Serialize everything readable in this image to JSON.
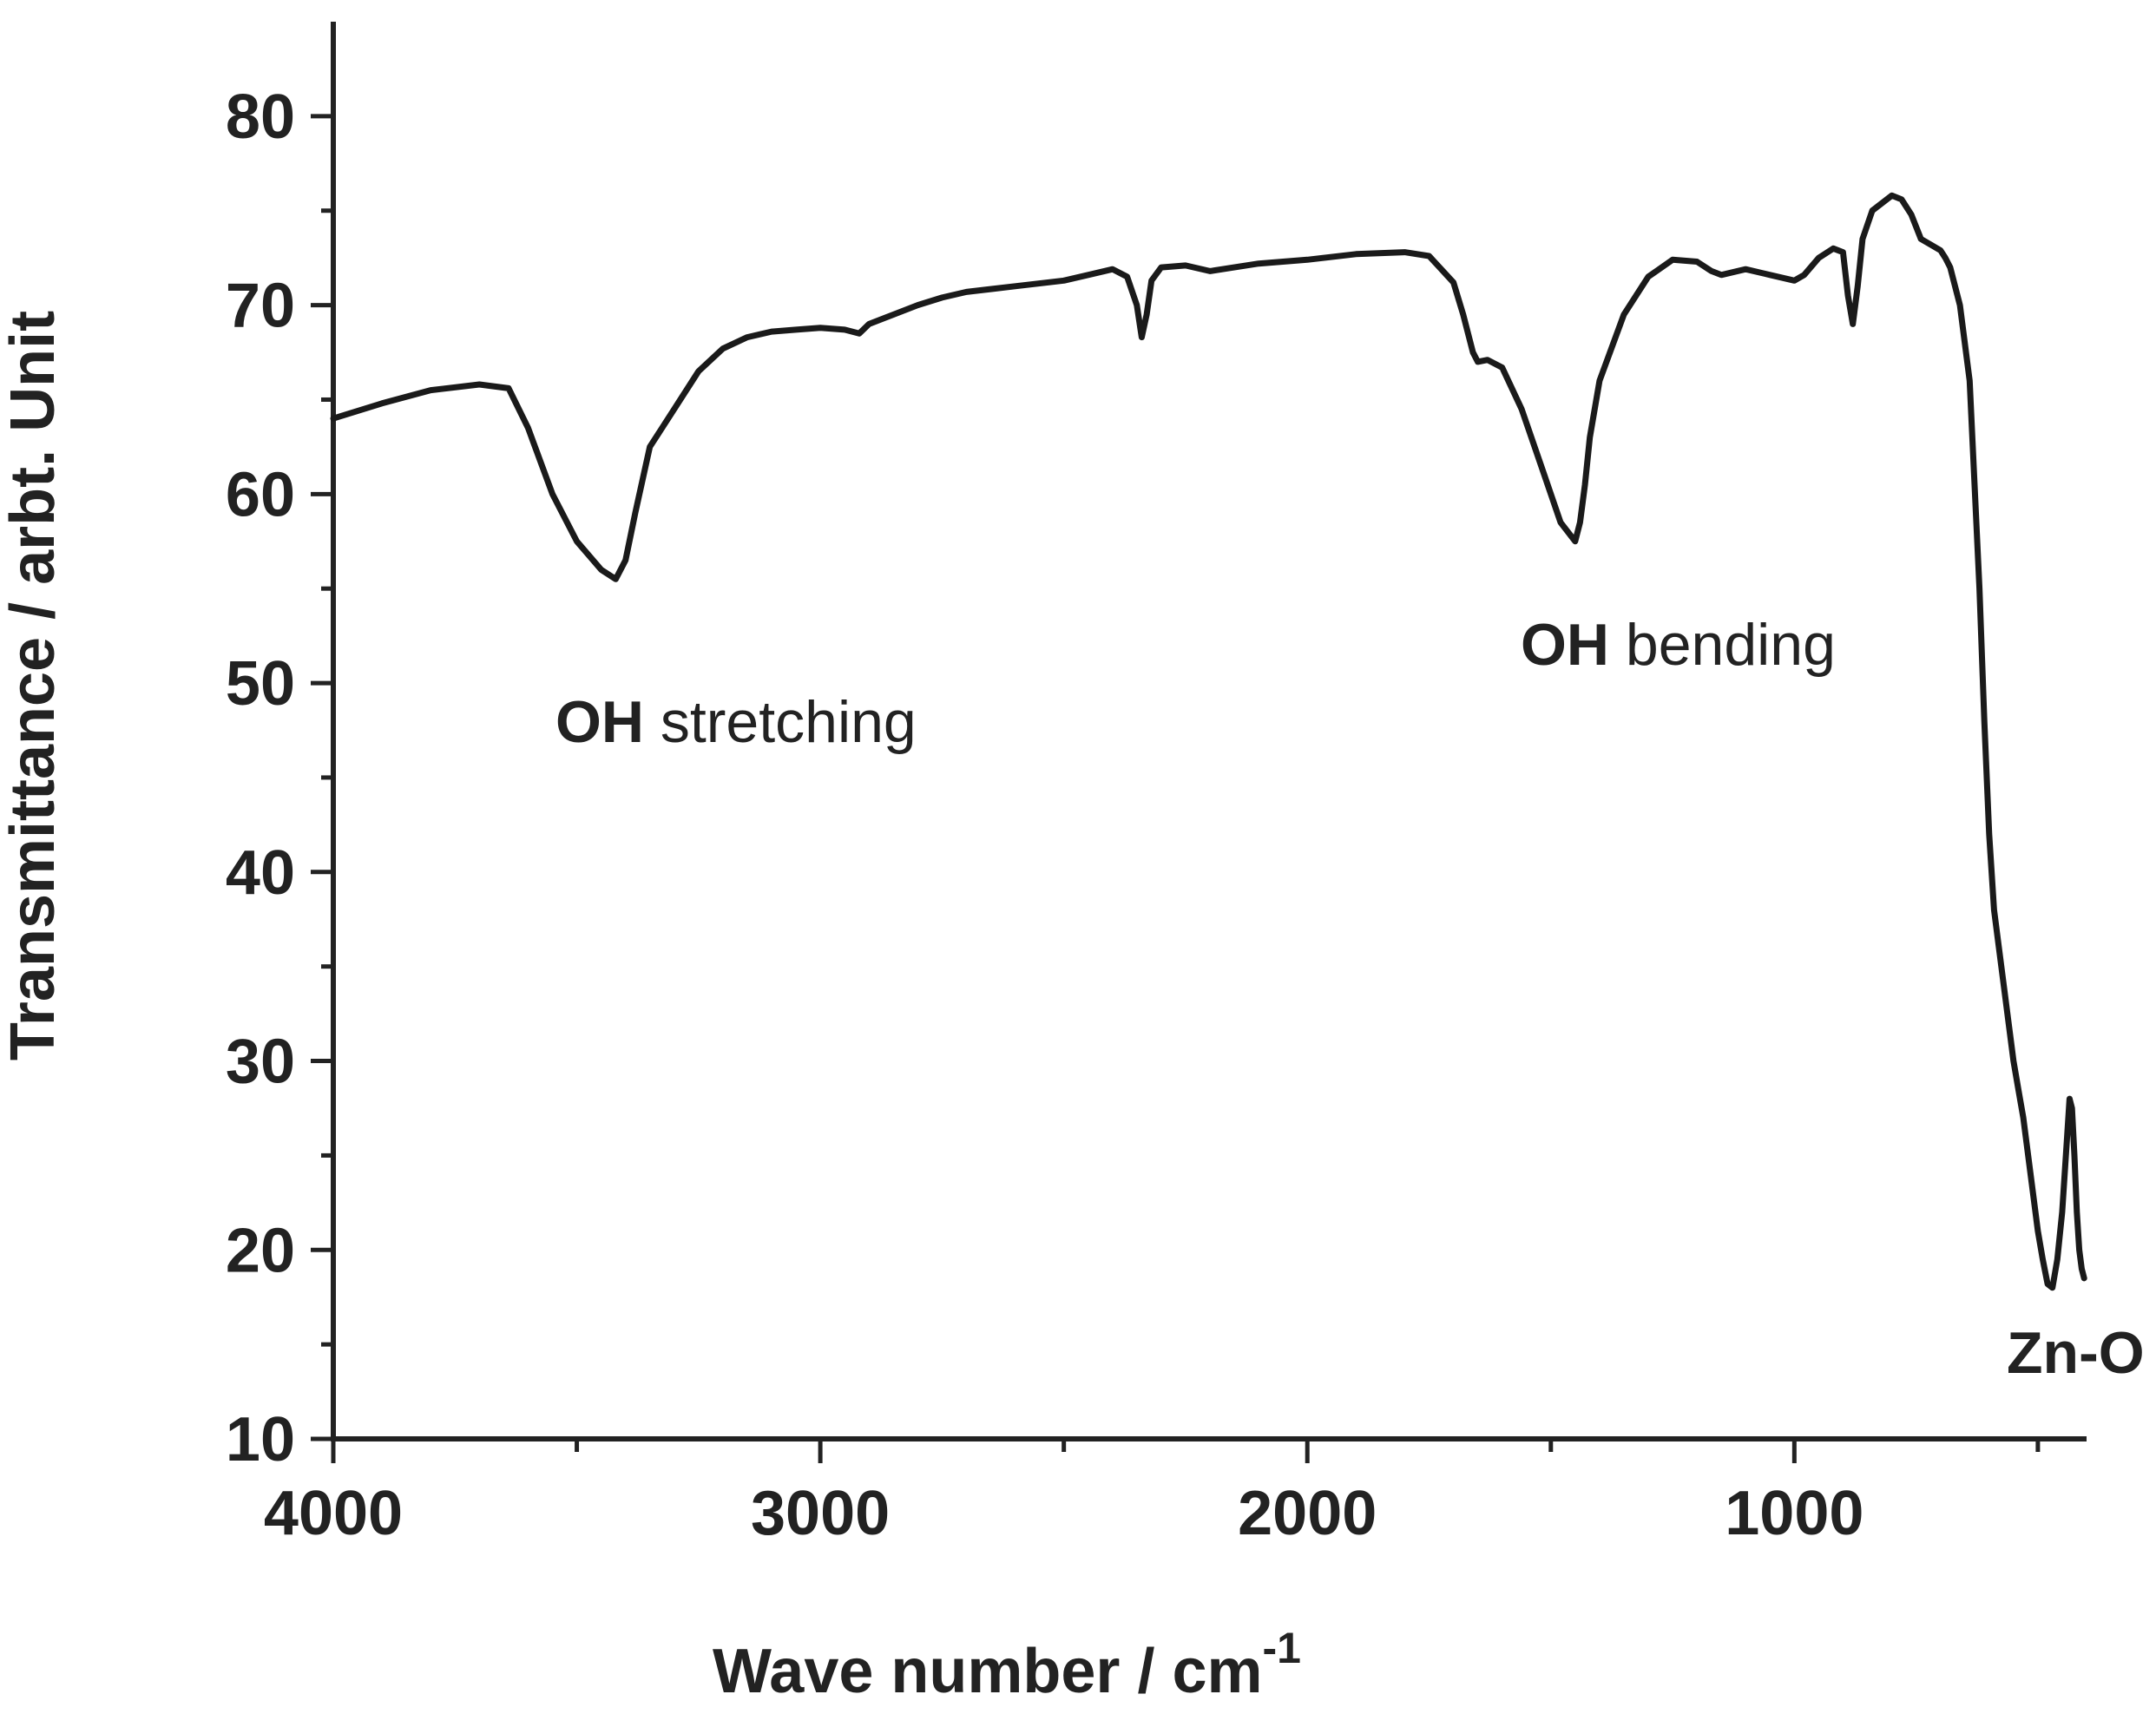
{
  "chart_data": {
    "type": "line",
    "title": "",
    "xlabel": "Wave number / cm",
    "xlabel_superscript": "-1",
    "ylabel": "Transmittance / arbt. Unit",
    "xlim": [
      4000,
      400
    ],
    "ylim": [
      10,
      85
    ],
    "x_ticks": [
      4000,
      3000,
      2000,
      1000
    ],
    "y_ticks": [
      10,
      20,
      30,
      40,
      50,
      60,
      70,
      80
    ],
    "grid": false,
    "legend": "none",
    "line_color": "#1a1a1a",
    "series": [
      {
        "x": [
          4000,
          3900,
          3800,
          3700,
          3640,
          3600,
          3550,
          3500,
          3450,
          3420,
          3400,
          3380,
          3350,
          3300,
          3250,
          3200,
          3150,
          3100,
          3050,
          3000,
          2950,
          2920,
          2900,
          2850,
          2800,
          2750,
          2700,
          2600,
          2500,
          2450,
          2400,
          2370,
          2350,
          2340,
          2330,
          2320,
          2300,
          2250,
          2200,
          2100,
          2000,
          1900,
          1800,
          1750,
          1700,
          1680,
          1660,
          1650,
          1630,
          1600,
          1560,
          1520,
          1480,
          1450,
          1440,
          1430,
          1420,
          1400,
          1350,
          1300,
          1250,
          1200,
          1170,
          1150,
          1100,
          1050,
          1000,
          980,
          950,
          920,
          900,
          890,
          880,
          870,
          860,
          840,
          800,
          780,
          760,
          740,
          720,
          700,
          690,
          680,
          660,
          640,
          620,
          610,
          600,
          590,
          580,
          570,
          560,
          550,
          540,
          530,
          520,
          510,
          500,
          490,
          480,
          470,
          460,
          450,
          440,
          435,
          430,
          425,
          420,
          415,
          410,
          405
        ],
        "y": [
          64.0,
          64.8,
          65.5,
          65.8,
          65.6,
          63.5,
          60.0,
          57.5,
          56.0,
          55.5,
          56.5,
          59.0,
          62.5,
          64.5,
          66.5,
          67.7,
          68.3,
          68.6,
          68.7,
          68.8,
          68.7,
          68.5,
          69.0,
          69.5,
          70.0,
          70.4,
          70.7,
          71.0,
          71.3,
          71.6,
          71.9,
          71.5,
          70.0,
          68.3,
          69.5,
          71.3,
          72.0,
          72.1,
          71.8,
          72.2,
          72.4,
          72.7,
          72.8,
          72.6,
          71.2,
          69.5,
          67.5,
          67.0,
          67.1,
          66.7,
          64.5,
          61.5,
          58.5,
          57.5,
          58.5,
          60.5,
          63.0,
          66.0,
          69.5,
          71.5,
          72.4,
          72.3,
          71.8,
          71.6,
          71.9,
          71.6,
          71.3,
          71.6,
          72.5,
          73.0,
          72.8,
          70.5,
          69.0,
          71.0,
          73.5,
          75.0,
          75.8,
          75.6,
          74.8,
          73.5,
          73.2,
          72.9,
          72.5,
          72.0,
          70.0,
          66.0,
          55.0,
          48.0,
          42.0,
          38.0,
          36.0,
          34.0,
          32.0,
          30.0,
          28.5,
          27.0,
          25.0,
          23.0,
          21.0,
          19.5,
          18.2,
          18.0,
          19.5,
          22.0,
          26.0,
          28.0,
          27.5,
          25.0,
          22.0,
          20.0,
          19.0,
          18.5
        ]
      }
    ],
    "annotations": [
      {
        "bold": "OH",
        "text": " stretching"
      },
      {
        "bold": "OH",
        "text": " bending"
      },
      {
        "bold": "Zn-O",
        "text": ""
      }
    ]
  }
}
